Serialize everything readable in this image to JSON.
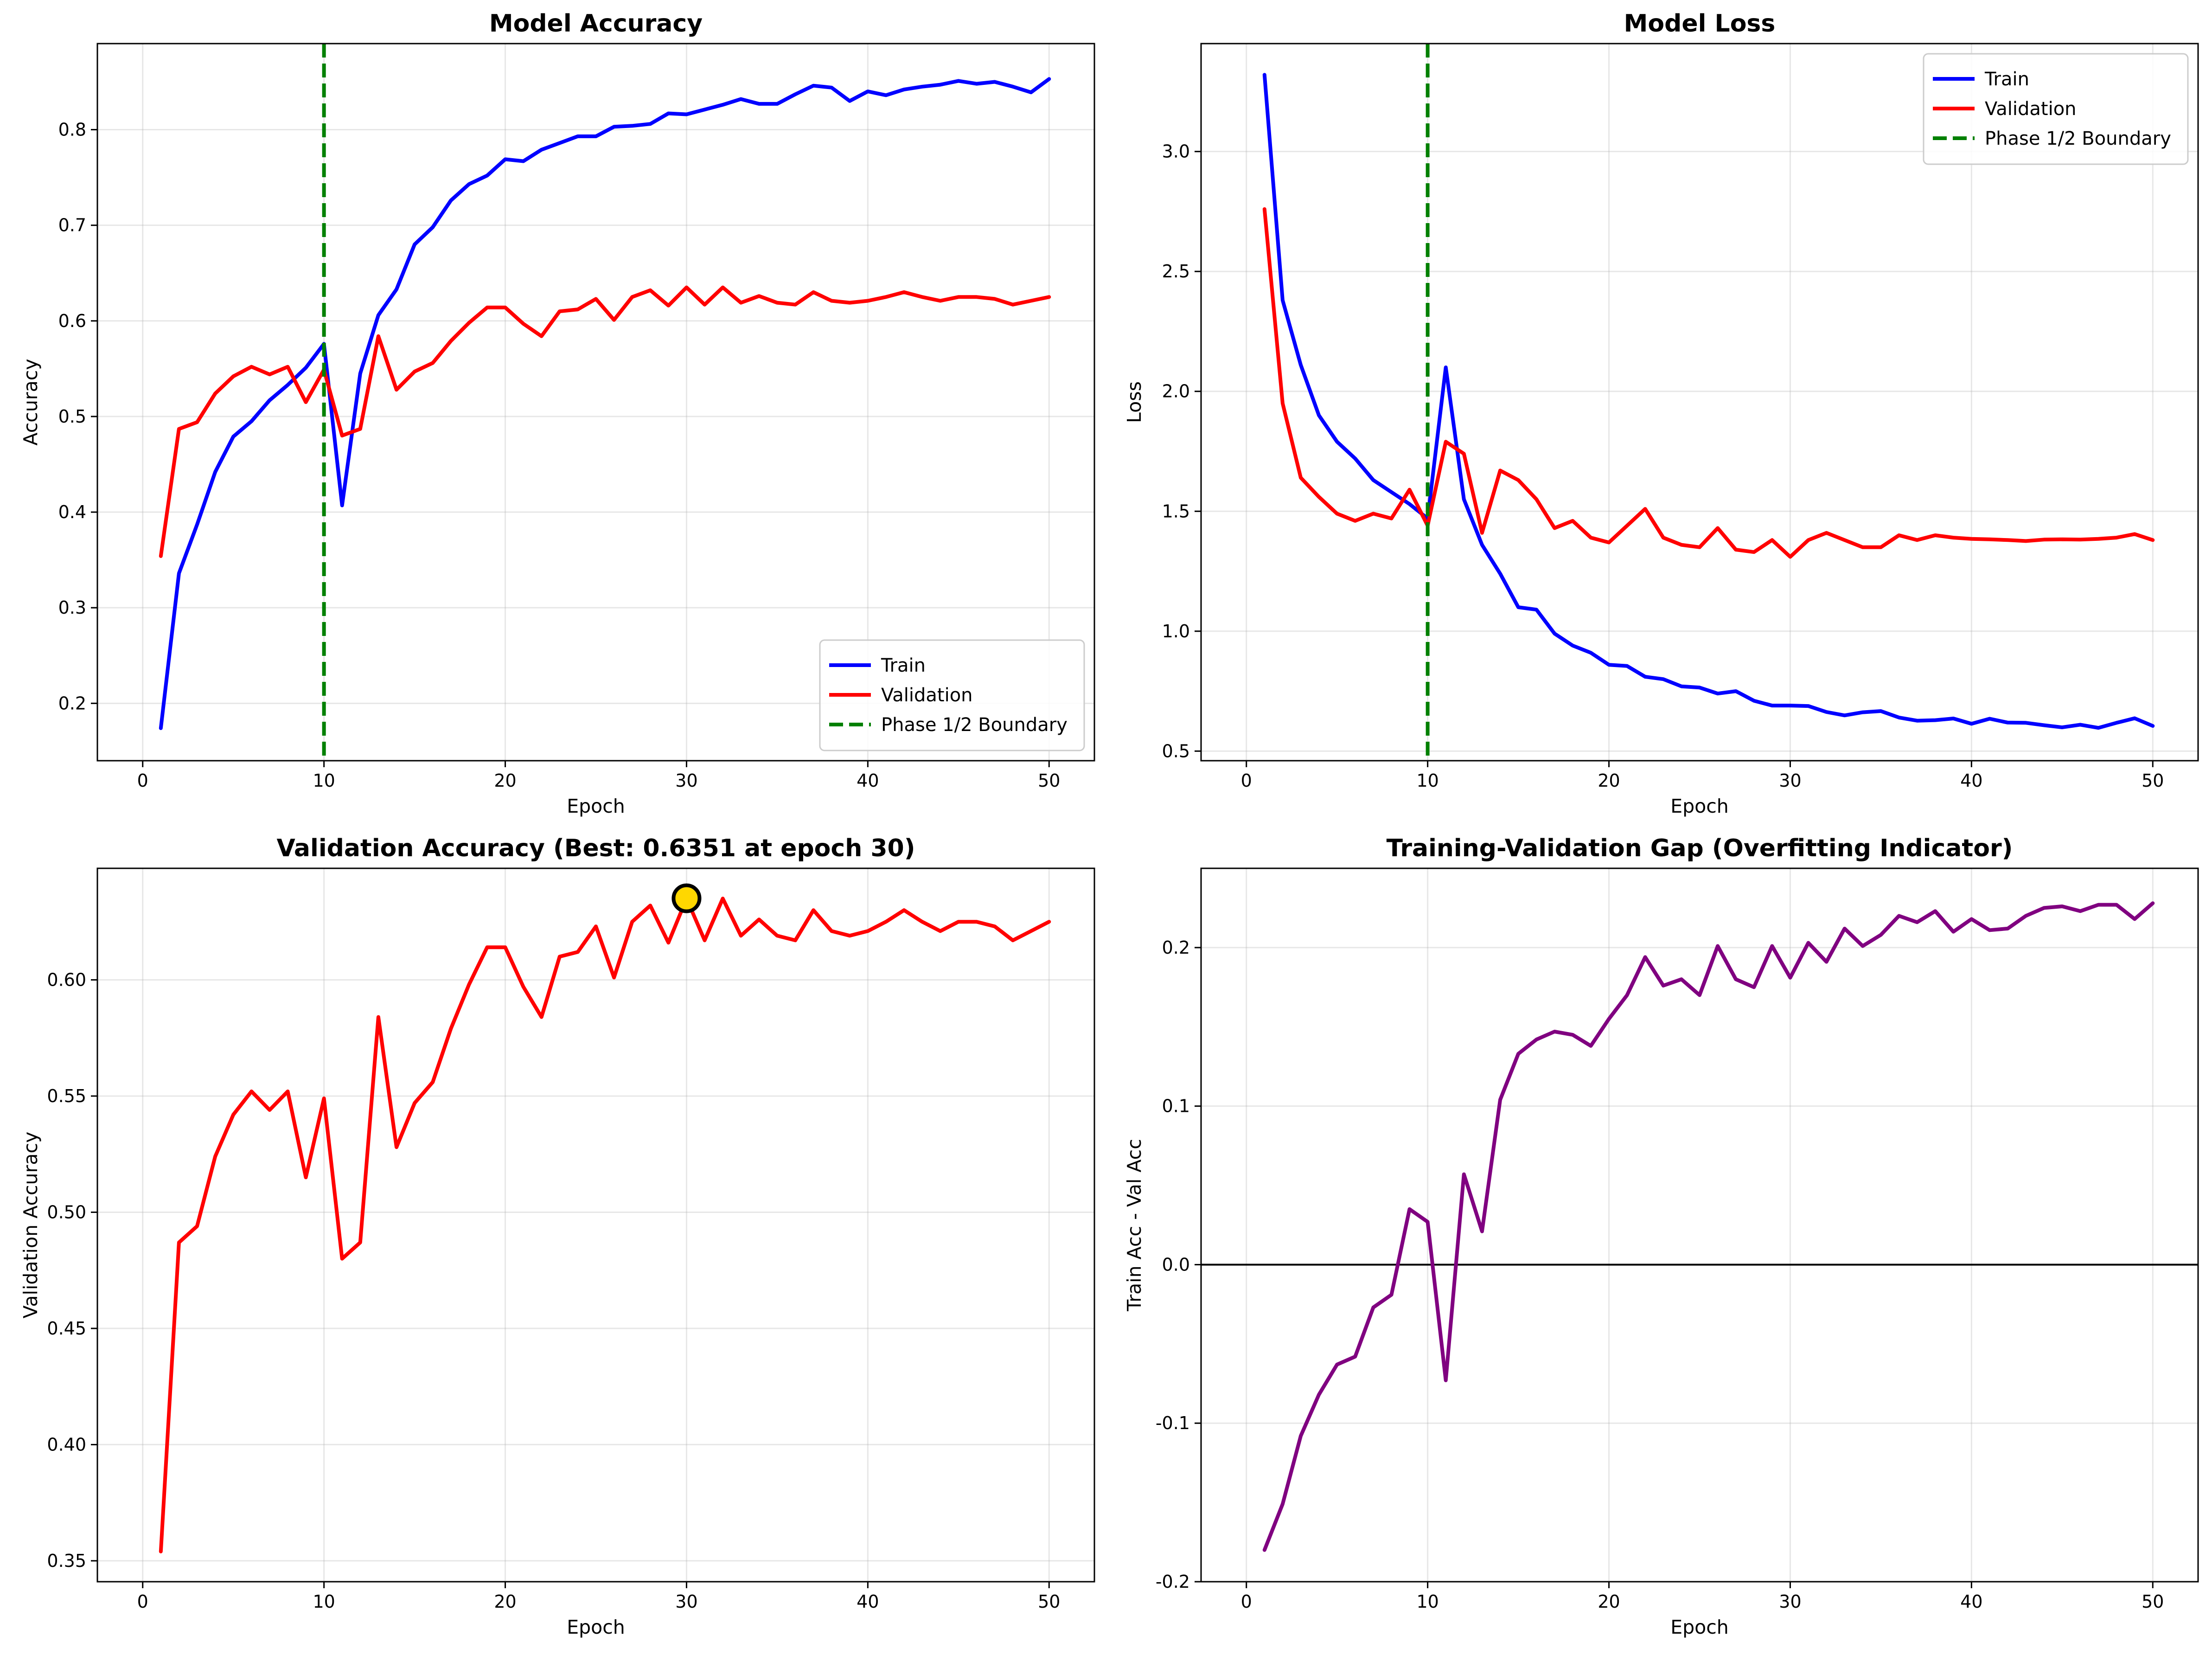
{
  "chart_data": [
    {
      "type": "line",
      "title": "Model Accuracy",
      "xlabel": "Epoch",
      "ylabel": "Accuracy",
      "xlim": [
        -2.5,
        52.5
      ],
      "ylim": [
        0.14,
        0.89
      ],
      "xticks": [
        0,
        10,
        20,
        30,
        40,
        50
      ],
      "yticks": [
        0.2,
        0.3,
        0.4,
        0.5,
        0.6,
        0.7,
        0.8
      ],
      "grid": true,
      "legend_position": "lower-right",
      "x": [
        1,
        2,
        3,
        4,
        5,
        6,
        7,
        8,
        9,
        10,
        11,
        12,
        13,
        14,
        15,
        16,
        17,
        18,
        19,
        20,
        21,
        22,
        23,
        24,
        25,
        26,
        27,
        28,
        29,
        30,
        31,
        32,
        33,
        34,
        35,
        36,
        37,
        38,
        39,
        40,
        41,
        42,
        43,
        44,
        45,
        46,
        47,
        48,
        49,
        50
      ],
      "series": [
        {
          "name": "Train",
          "color": "#0000ff",
          "style": "solid",
          "values": [
            0.174,
            0.336,
            0.387,
            0.442,
            0.479,
            0.495,
            0.517,
            0.533,
            0.551,
            0.576,
            0.407,
            0.545,
            0.606,
            0.633,
            0.68,
            0.698,
            0.726,
            0.743,
            0.752,
            0.769,
            0.767,
            0.779,
            0.786,
            0.793,
            0.793,
            0.803,
            0.804,
            0.806,
            0.817,
            0.816,
            0.821,
            0.826,
            0.832,
            0.827,
            0.827,
            0.837,
            0.846,
            0.844,
            0.83,
            0.84,
            0.836,
            0.842,
            0.845,
            0.847,
            0.851,
            0.848,
            0.85,
            0.845,
            0.839,
            0.853
          ]
        },
        {
          "name": "Validation",
          "color": "#ff0000",
          "style": "solid",
          "values": [
            0.354,
            0.487,
            0.494,
            0.524,
            0.542,
            0.552,
            0.544,
            0.552,
            0.515,
            0.549,
            0.48,
            0.487,
            0.584,
            0.528,
            0.547,
            0.556,
            0.579,
            0.598,
            0.614,
            0.614,
            0.597,
            0.584,
            0.61,
            0.612,
            0.623,
            0.601,
            0.625,
            0.632,
            0.616,
            0.635,
            0.617,
            0.635,
            0.619,
            0.626,
            0.619,
            0.617,
            0.63,
            0.621,
            0.619,
            0.621,
            0.625,
            0.63,
            0.625,
            0.621,
            0.625,
            0.625,
            0.623,
            0.617,
            0.621,
            0.625
          ]
        }
      ],
      "vline": {
        "name": "Phase 1/2 Boundary",
        "x": 10,
        "color": "#008000",
        "style": "dashed"
      }
    },
    {
      "type": "line",
      "title": "Model Loss",
      "xlabel": "Epoch",
      "ylabel": "Loss",
      "xlim": [
        -2.5,
        52.5
      ],
      "ylim": [
        0.46,
        3.45
      ],
      "xticks": [
        0,
        10,
        20,
        30,
        40,
        50
      ],
      "yticks": [
        0.5,
        1.0,
        1.5,
        2.0,
        2.5,
        3.0
      ],
      "grid": true,
      "legend_position": "upper-right",
      "x": [
        1,
        2,
        3,
        4,
        5,
        6,
        7,
        8,
        9,
        10,
        11,
        12,
        13,
        14,
        15,
        16,
        17,
        18,
        19,
        20,
        21,
        22,
        23,
        24,
        25,
        26,
        27,
        28,
        29,
        30,
        31,
        32,
        33,
        34,
        35,
        36,
        37,
        38,
        39,
        40,
        41,
        42,
        43,
        44,
        45,
        46,
        47,
        48,
        49,
        50
      ],
      "series": [
        {
          "name": "Train",
          "color": "#0000ff",
          "style": "solid",
          "values": [
            3.32,
            2.38,
            2.11,
            1.9,
            1.79,
            1.72,
            1.63,
            1.58,
            1.53,
            1.47,
            2.1,
            1.55,
            1.36,
            1.24,
            1.1,
            1.09,
            0.99,
            0.94,
            0.91,
            0.86,
            0.855,
            0.81,
            0.8,
            0.77,
            0.765,
            0.74,
            0.75,
            0.71,
            0.69,
            0.69,
            0.688,
            0.663,
            0.649,
            0.662,
            0.667,
            0.64,
            0.627,
            0.629,
            0.636,
            0.614,
            0.635,
            0.619,
            0.618,
            0.608,
            0.599,
            0.61,
            0.597,
            0.618,
            0.637,
            0.605
          ]
        },
        {
          "name": "Validation",
          "color": "#ff0000",
          "style": "solid",
          "values": [
            2.76,
            1.95,
            1.64,
            1.56,
            1.49,
            1.46,
            1.49,
            1.47,
            1.59,
            1.44,
            1.79,
            1.74,
            1.41,
            1.67,
            1.63,
            1.55,
            1.43,
            1.46,
            1.39,
            1.37,
            1.44,
            1.51,
            1.39,
            1.36,
            1.35,
            1.43,
            1.34,
            1.33,
            1.38,
            1.31,
            1.38,
            1.41,
            1.38,
            1.35,
            1.35,
            1.4,
            1.38,
            1.4,
            1.39,
            1.385,
            1.383,
            1.38,
            1.376,
            1.382,
            1.383,
            1.382,
            1.385,
            1.39,
            1.405,
            1.38
          ]
        }
      ],
      "vline": {
        "name": "Phase 1/2 Boundary",
        "x": 10,
        "color": "#008000",
        "style": "dashed"
      }
    },
    {
      "type": "line",
      "title": "Validation Accuracy (Best: 0.6351 at epoch 30)",
      "xlabel": "Epoch",
      "ylabel": "Validation Accuracy",
      "xlim": [
        -2.5,
        52.5
      ],
      "ylim": [
        0.341,
        0.648
      ],
      "xticks": [
        0,
        10,
        20,
        30,
        40,
        50
      ],
      "yticks": [
        0.35,
        0.4,
        0.45,
        0.5,
        0.55,
        0.6
      ],
      "grid": true,
      "x": [
        1,
        2,
        3,
        4,
        5,
        6,
        7,
        8,
        9,
        10,
        11,
        12,
        13,
        14,
        15,
        16,
        17,
        18,
        19,
        20,
        21,
        22,
        23,
        24,
        25,
        26,
        27,
        28,
        29,
        30,
        31,
        32,
        33,
        34,
        35,
        36,
        37,
        38,
        39,
        40,
        41,
        42,
        43,
        44,
        45,
        46,
        47,
        48,
        49,
        50
      ],
      "series": [
        {
          "color": "#ff0000",
          "style": "solid",
          "values": [
            0.354,
            0.487,
            0.494,
            0.524,
            0.542,
            0.552,
            0.544,
            0.552,
            0.515,
            0.549,
            0.48,
            0.487,
            0.584,
            0.528,
            0.547,
            0.556,
            0.579,
            0.598,
            0.614,
            0.614,
            0.597,
            0.584,
            0.61,
            0.612,
            0.623,
            0.601,
            0.625,
            0.632,
            0.616,
            0.635,
            0.617,
            0.635,
            0.619,
            0.626,
            0.619,
            0.617,
            0.63,
            0.621,
            0.619,
            0.621,
            0.625,
            0.63,
            0.625,
            0.621,
            0.625,
            0.625,
            0.623,
            0.617,
            0.621,
            0.625
          ]
        }
      ],
      "best_marker": {
        "x": 30,
        "y": 0.6351,
        "color": "#ffd700"
      }
    },
    {
      "type": "line",
      "title": "Training-Validation Gap (Overfitting Indicator)",
      "xlabel": "Epoch",
      "ylabel": "Train Acc - Val Acc",
      "xlim": [
        -2.5,
        52.5
      ],
      "ylim": [
        -0.2,
        0.25
      ],
      "xticks": [
        0,
        10,
        20,
        30,
        40,
        50
      ],
      "yticks": [
        -0.2,
        -0.1,
        0.0,
        0.1,
        0.2
      ],
      "grid": true,
      "x": [
        1,
        2,
        3,
        4,
        5,
        6,
        7,
        8,
        9,
        10,
        11,
        12,
        13,
        14,
        15,
        16,
        17,
        18,
        19,
        20,
        21,
        22,
        23,
        24,
        25,
        26,
        27,
        28,
        29,
        30,
        31,
        32,
        33,
        34,
        35,
        36,
        37,
        38,
        39,
        40,
        41,
        42,
        43,
        44,
        45,
        46,
        47,
        48,
        49,
        50
      ],
      "series": [
        {
          "color": "#800080",
          "style": "solid",
          "values": [
            -0.18,
            -0.151,
            -0.108,
            -0.082,
            -0.063,
            -0.058,
            -0.027,
            -0.019,
            0.035,
            0.027,
            -0.073,
            0.057,
            0.021,
            0.104,
            0.133,
            0.142,
            0.147,
            0.145,
            0.138,
            0.155,
            0.17,
            0.194,
            0.176,
            0.18,
            0.17,
            0.201,
            0.18,
            0.175,
            0.201,
            0.181,
            0.203,
            0.191,
            0.212,
            0.201,
            0.208,
            0.22,
            0.216,
            0.223,
            0.21,
            0.218,
            0.211,
            0.212,
            0.22,
            0.225,
            0.226,
            0.223,
            0.227,
            0.227,
            0.218,
            0.228
          ]
        }
      ],
      "hline": {
        "y": 0,
        "color": "#000000"
      }
    }
  ]
}
